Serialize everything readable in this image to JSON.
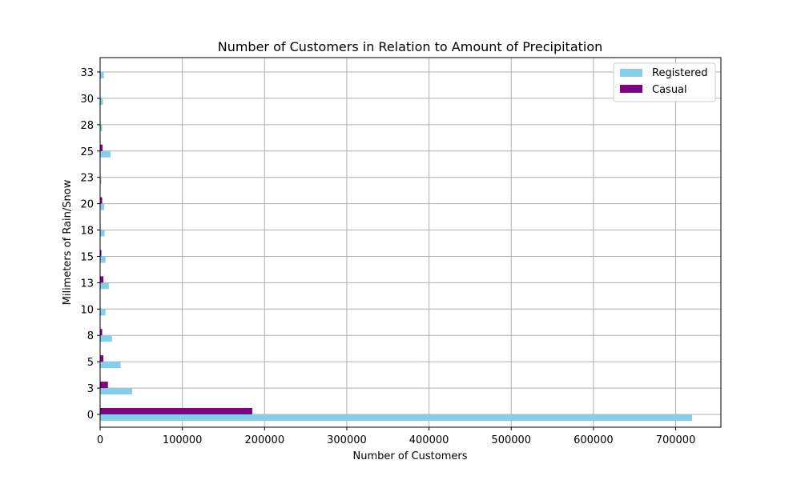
{
  "chart_data": {
    "type": "bar",
    "orientation": "horizontal",
    "title": "Number of Customers in Relation to Amount of Precipitation",
    "xlabel": "Number of Customers",
    "ylabel": "Milimeters of Rain/Snow",
    "categories": [
      "0",
      "3",
      "5",
      "8",
      "10",
      "13",
      "15",
      "18",
      "20",
      "23",
      "25",
      "28",
      "30",
      "33"
    ],
    "series": [
      {
        "name": "Registered",
        "color": "#87ceeb",
        "values": [
          720000,
          39000,
          25000,
          14500,
          6500,
          10500,
          6500,
          5500,
          5000,
          1500,
          12500,
          2500,
          3500,
          4500
        ]
      },
      {
        "name": "Casual",
        "color": "#800080",
        "values": [
          185000,
          9500,
          4000,
          2500,
          500,
          4000,
          1500,
          500,
          2500,
          200,
          3000,
          200,
          200,
          200
        ]
      }
    ],
    "xlim": [
      0,
      755000
    ],
    "xticks": [
      0,
      100000,
      200000,
      300000,
      400000,
      500000,
      600000,
      700000
    ],
    "xtick_labels": [
      "0",
      "100000",
      "200000",
      "300000",
      "400000",
      "500000",
      "600000",
      "700000"
    ],
    "grid": true,
    "legend_position": "top-right"
  }
}
